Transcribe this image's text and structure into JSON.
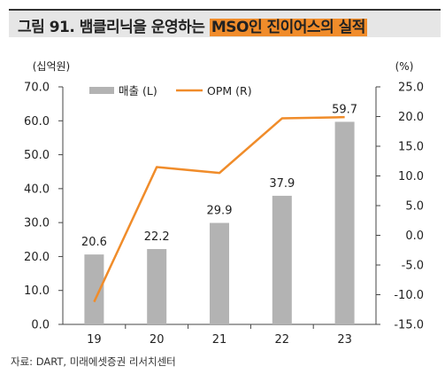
{
  "title": {
    "prefix": "그림 91. 뱀클리닉을 운영하는 ",
    "highlight": "MSO인 진이어스의 실적"
  },
  "source": "자료: DART, 미래에셋증권 리서치센터",
  "colors": {
    "bar": "#b3b3b3",
    "line": "#f08c2a",
    "title_bg": "#e6e6e6",
    "highlight": "#f08c2a"
  },
  "chart_data": {
    "type": "bar+line",
    "categories": [
      "19",
      "20",
      "21",
      "22",
      "23"
    ],
    "y_left": {
      "unit_label": "(십억원)",
      "range": [
        0,
        70
      ],
      "ticks": [
        0,
        10,
        20,
        30,
        40,
        50,
        60,
        70
      ],
      "tick_labels": [
        "0.0",
        "10.0",
        "20.0",
        "30.0",
        "40.0",
        "50.0",
        "60.0",
        "70.0"
      ]
    },
    "y_right": {
      "unit_label": "(%)",
      "range": [
        -15,
        25
      ],
      "ticks": [
        -15,
        -10,
        -5,
        0,
        5,
        10,
        15,
        20,
        25
      ],
      "tick_labels": [
        "-15.0",
        "-10.0",
        "-5.0",
        "0.0",
        "5.0",
        "10.0",
        "15.0",
        "20.0",
        "25.0"
      ]
    },
    "series": [
      {
        "name": "매출 (L)",
        "type": "bar",
        "axis": "left",
        "values": [
          20.6,
          22.2,
          29.9,
          37.9,
          59.7
        ],
        "labels": [
          "20.6",
          "22.2",
          "29.9",
          "37.9",
          "59.7"
        ]
      },
      {
        "name": "OPM (R)",
        "type": "line",
        "axis": "right",
        "values": [
          -11.2,
          11.5,
          10.5,
          19.7,
          19.9
        ]
      }
    ],
    "legend": "top",
    "grid": false
  }
}
